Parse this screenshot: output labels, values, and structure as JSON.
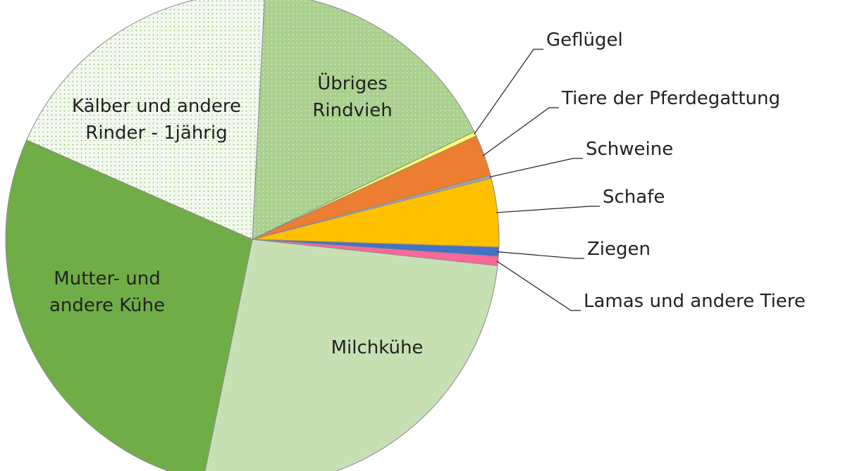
{
  "chart_data": {
    "type": "pie",
    "categories": [
      "Übriges Rindvieh",
      "Geflügel",
      "Tiere der Pferdegattung",
      "Schweine",
      "Schafe",
      "Ziegen",
      "Lamas und andere Tiere",
      "Milchkühe",
      "Mutter- und andere Kühe",
      "Kälber und andere Rinder - 1jährig"
    ],
    "values": [
      17,
      0.3,
      2.7,
      0.2,
      4.5,
      0.6,
      0.6,
      26.5,
      28.4,
      19.2
    ],
    "colors": [
      "#a9d08e",
      "#ffff66",
      "#ed7d31",
      "#a5a5a5",
      "#ffc000",
      "#4472c4",
      "#ff6699",
      "#c6e0b4",
      "#70ad47",
      "#f2f8ee"
    ]
  }
}
